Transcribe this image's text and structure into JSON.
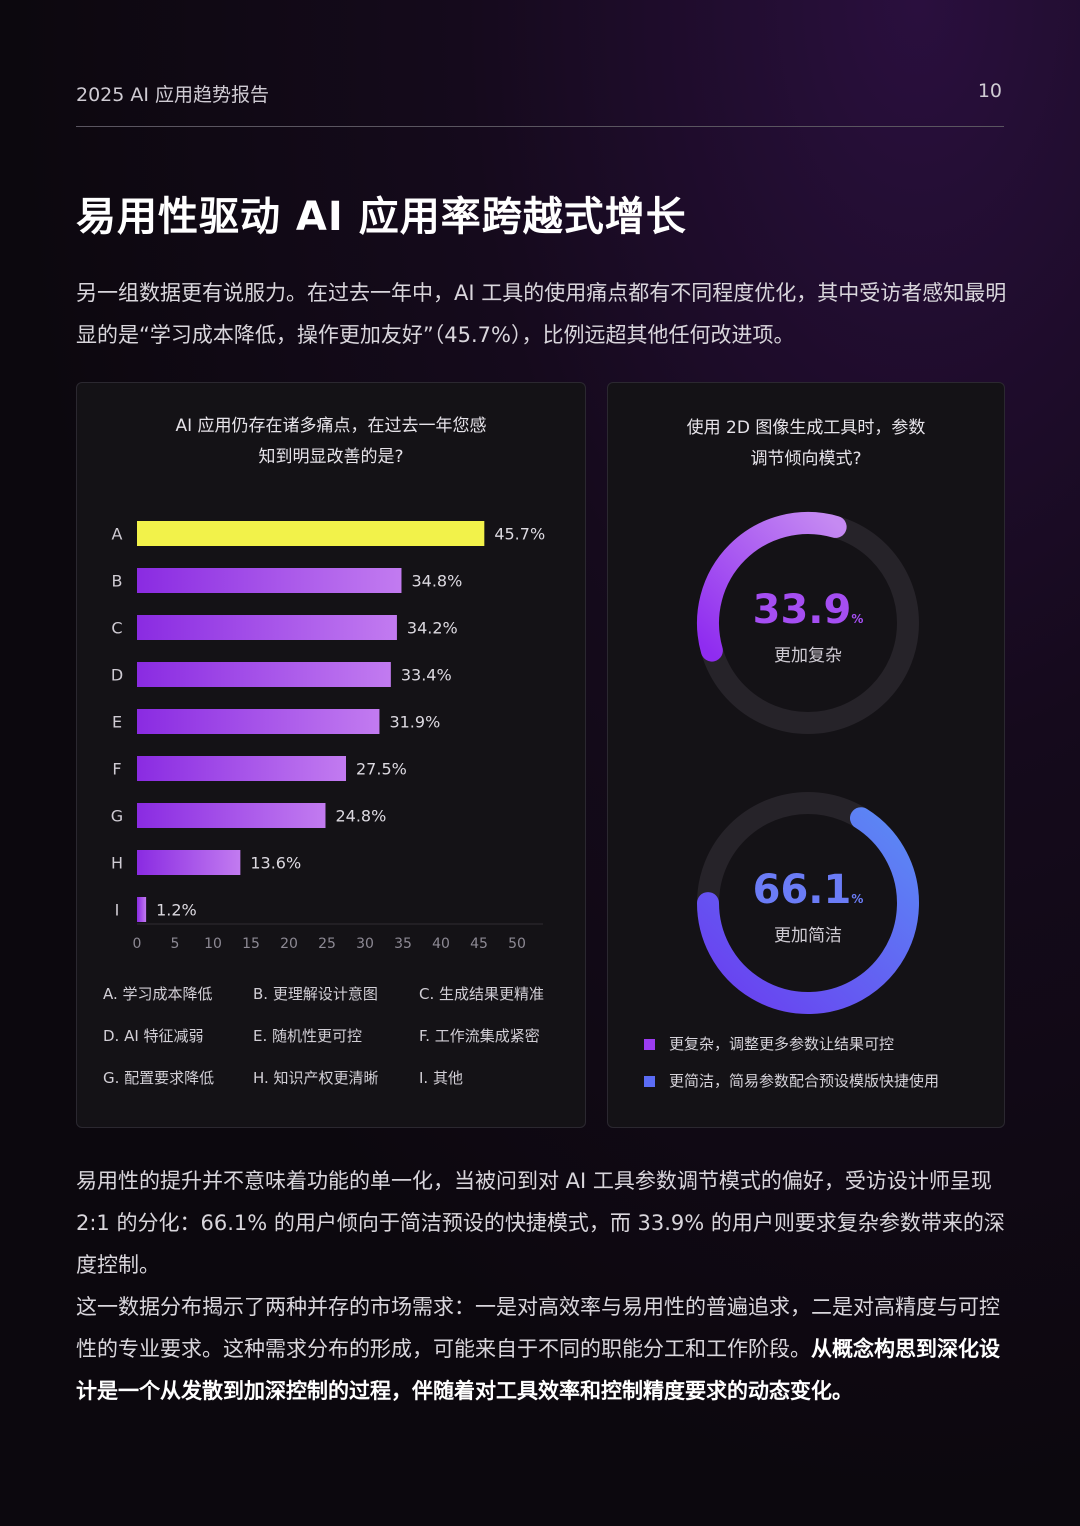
{
  "header": {
    "report": "2025 AI 应用趋势报告",
    "page": "10"
  },
  "title": "易用性驱动 AI 应用率跨越式增长",
  "intro": "另一组数据更有说服力。在过去一年中，AI 工具的使用痛点都有不同程度优化，其中受访者感知最明显的是“学习成本降低，操作更加友好”（45.7%），比例远超其他任何改进项。",
  "left_card": {
    "title_line1": "AI 应用仍存在诸多痛点，在过去一年您感",
    "title_line2": "知到明显改善的是?",
    "legend": [
      "A. 学习成本降低",
      "B. 更理解设计意图",
      "C. 生成结果更精准",
      "D. AI 特征减弱",
      "E. 随机性更可控",
      "F. 工作流集成紧密",
      "G. 配置要求降低",
      "H. 知识产权更清晰",
      "I. 其他"
    ]
  },
  "chart_data": [
    {
      "type": "bar",
      "orientation": "horizontal",
      "categories": [
        "A",
        "B",
        "C",
        "D",
        "E",
        "F",
        "G",
        "H",
        "I"
      ],
      "values": [
        45.7,
        34.8,
        34.2,
        33.4,
        31.9,
        27.5,
        24.8,
        13.6,
        1.2
      ],
      "data_labels": [
        "45.7%",
        "34.8%",
        "34.2%",
        "33.4%",
        "31.9%",
        "27.5%",
        "24.8%",
        "13.6%",
        "1.2%"
      ],
      "xlim": [
        0,
        50
      ],
      "xticks": [
        0,
        5,
        10,
        15,
        20,
        25,
        30,
        35,
        40,
        45,
        50
      ],
      "highlight_color": "#f2f24a",
      "bar_gradient": [
        "#8a2be2",
        "#c27bf0"
      ]
    },
    {
      "type": "pie",
      "style": "donut",
      "title_line1": "使用 2D 图像生成工具时，参数",
      "title_line2": "调节倾向模式?",
      "series": [
        {
          "name": "更复杂，调整更多参数让结果可控",
          "short": "更加复杂",
          "value": 33.9,
          "value_text": "33.9",
          "color": "#9b3cf0"
        },
        {
          "name": "更简洁，简易参数配合预设模版快捷使用",
          "short": "更加简洁",
          "value": 66.1,
          "value_text": "66.1",
          "color": "#5b6cf5"
        }
      ],
      "unit": "%"
    }
  ],
  "body": {
    "p1": "易用性的提升并不意味着功能的单一化，当被问到对 AI 工具参数调节模式的偏好，受访设计师呈现 2:1 的分化：66.1% 的用户倾向于简洁预设的快捷模式，而 33.9% 的用户则要求复杂参数带来的深度控制。",
    "p2_normal": "这一数据分布揭示了两种并存的市场需求：一是对高效率与易用性的普遍追求，二是对高精度与可控性的专业要求。这种需求分布的形成，可能来自于不同的职能分工和工作阶段。",
    "p2_bold": "从概念构思到深化设计是一个从发散到加深控制的过程，伴随着对工具效率和控制精度要求的动态变化。"
  }
}
